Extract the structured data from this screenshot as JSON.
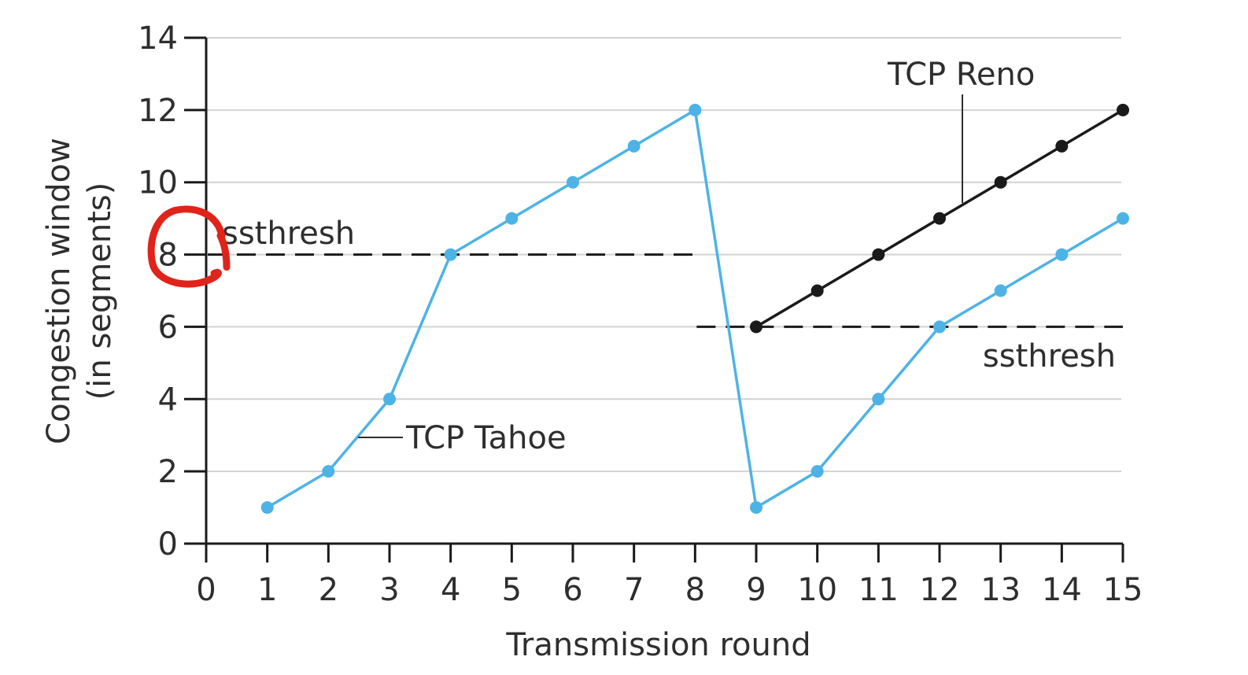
{
  "chart_data": {
    "type": "line",
    "xlabel": "Transmission round",
    "ylabel_lines": [
      "Congestion window",
      "(in segments)"
    ],
    "xlim": [
      0,
      15
    ],
    "ylim": [
      0,
      14
    ],
    "x_ticks": [
      0,
      1,
      2,
      3,
      4,
      5,
      6,
      7,
      8,
      9,
      10,
      11,
      12,
      13,
      14,
      15
    ],
    "y_ticks": [
      0,
      2,
      4,
      6,
      8,
      10,
      12,
      14
    ],
    "grid": "horizontal",
    "series": [
      {
        "name": "TCP Tahoe",
        "color": "#4db3e6",
        "points": [
          [
            1,
            1
          ],
          [
            2,
            2
          ],
          [
            3,
            4
          ],
          [
            4,
            8
          ],
          [
            5,
            9
          ],
          [
            6,
            10
          ],
          [
            7,
            11
          ],
          [
            8,
            12
          ],
          [
            9,
            1
          ],
          [
            10,
            2
          ],
          [
            11,
            4
          ],
          [
            12,
            6
          ],
          [
            13,
            7
          ],
          [
            14,
            8
          ],
          [
            15,
            9
          ]
        ]
      },
      {
        "name": "TCP Reno",
        "color": "#1a1a1a",
        "points": [
          [
            9,
            6
          ],
          [
            10,
            7
          ],
          [
            11,
            8
          ],
          [
            12,
            9
          ],
          [
            13,
            10
          ],
          [
            14,
            11
          ],
          [
            15,
            12
          ]
        ]
      }
    ],
    "thresholds": [
      {
        "label": "ssthresh",
        "y": 8,
        "x_range": [
          0,
          8
        ]
      },
      {
        "label": "ssthresh",
        "y": 6,
        "x_range": [
          8,
          15
        ]
      }
    ],
    "annotations": {
      "tahoe_label": "TCP Tahoe",
      "reno_label": "TCP Reno",
      "ssthresh_upper": "ssthresh",
      "ssthresh_lower": "ssthresh"
    },
    "highlight": {
      "description": "red hand-drawn circle around y tick 8",
      "color": "#e0241b",
      "y_value": 8
    }
  }
}
